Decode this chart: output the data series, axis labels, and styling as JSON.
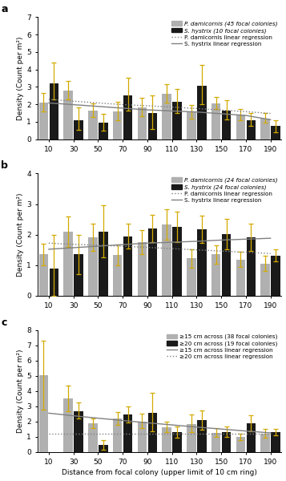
{
  "x_positions": [
    10,
    30,
    50,
    70,
    90,
    110,
    130,
    150,
    170,
    190
  ],
  "panel_a": {
    "gray_bars": [
      2.1,
      2.8,
      1.65,
      1.6,
      1.8,
      2.6,
      1.55,
      2.05,
      1.4,
      1.2
    ],
    "black_bars": [
      3.2,
      1.1,
      0.95,
      2.5,
      1.5,
      2.15,
      3.05,
      1.65,
      1.1,
      0.75
    ],
    "gray_err_hi": [
      0.55,
      0.55,
      0.4,
      0.55,
      0.55,
      0.55,
      0.4,
      0.35,
      0.35,
      0.3
    ],
    "black_err_hi": [
      1.2,
      0.7,
      0.5,
      1.0,
      1.0,
      0.75,
      1.2,
      0.6,
      0.4,
      0.35
    ],
    "gray_err_lo": [
      0.5,
      0.5,
      0.4,
      0.5,
      0.5,
      0.5,
      0.35,
      0.3,
      0.3,
      0.25
    ],
    "black_err_lo": [
      0.9,
      0.55,
      0.45,
      0.85,
      0.9,
      0.65,
      1.05,
      0.5,
      0.35,
      0.35
    ],
    "reg_gray": [
      2.28,
      2.18,
      2.08,
      1.98,
      1.92,
      1.84,
      1.76,
      1.67,
      1.58,
      1.48
    ],
    "reg_black": [
      2.08,
      1.98,
      1.88,
      1.78,
      1.68,
      1.62,
      1.56,
      1.46,
      1.36,
      1.12
    ],
    "ylim": [
      0,
      7
    ],
    "yticks": [
      0,
      1,
      2,
      3,
      4,
      5,
      6,
      7
    ],
    "reg_gray_style": "dotted",
    "reg_black_style": "solid",
    "legend": [
      "P. damicornis (45 focal colonies)",
      "S. hystrix (10 focal colonies)",
      "P. damicornis linear regression",
      "S. hystrix linear regression"
    ],
    "legend_italic": [
      true,
      true,
      false,
      false
    ],
    "label": "a"
  },
  "panel_b": {
    "gray_bars": [
      1.35,
      2.1,
      1.92,
      1.33,
      1.75,
      2.32,
      1.22,
      1.35,
      1.18,
      1.05
    ],
    "black_bars": [
      0.88,
      1.35,
      2.1,
      1.95,
      2.2,
      2.25,
      2.18,
      2.02,
      1.92,
      1.32
    ],
    "gray_err_hi": [
      0.35,
      0.5,
      0.45,
      0.35,
      0.4,
      0.5,
      0.3,
      0.3,
      0.25,
      0.25
    ],
    "black_err_hi": [
      1.1,
      0.65,
      0.85,
      0.4,
      0.45,
      0.5,
      0.45,
      0.5,
      0.45,
      0.2
    ],
    "gray_err_lo": [
      0.35,
      0.5,
      0.45,
      0.35,
      0.4,
      0.5,
      0.3,
      0.3,
      0.25,
      0.25
    ],
    "black_err_lo": [
      0.88,
      0.65,
      0.85,
      0.4,
      0.45,
      0.5,
      0.45,
      0.5,
      0.45,
      0.2
    ],
    "reg_gray": [
      1.72,
      1.68,
      1.65,
      1.62,
      1.58,
      1.54,
      1.5,
      1.46,
      1.42,
      1.38
    ],
    "reg_black": [
      1.52,
      1.57,
      1.62,
      1.67,
      1.72,
      1.75,
      1.78,
      1.82,
      1.85,
      1.88
    ],
    "ylim": [
      0,
      4
    ],
    "yticks": [
      0,
      1,
      2,
      3,
      4
    ],
    "reg_gray_style": "dotted",
    "reg_black_style": "solid",
    "legend": [
      "P. damicornis (24 focal colonies)",
      "S. hystrix (24 focal colonies)",
      "P. damicornis linear regression",
      "S. hystrix linear regression"
    ],
    "legend_italic": [
      true,
      true,
      false,
      false
    ],
    "label": "b"
  },
  "panel_c": {
    "gray_bars": [
      5.05,
      3.5,
      1.88,
      2.2,
      2.0,
      1.65,
      1.85,
      1.25,
      0.98,
      1.22
    ],
    "black_bars": [
      0.0,
      2.68,
      0.45,
      2.45,
      2.58,
      1.3,
      2.08,
      1.32,
      1.88,
      1.3
    ],
    "gray_err_hi": [
      2.25,
      0.85,
      0.3,
      0.4,
      0.5,
      0.35,
      0.6,
      0.3,
      0.25,
      0.3
    ],
    "black_err_hi": [
      0.0,
      0.55,
      0.35,
      0.55,
      1.3,
      0.38,
      0.65,
      0.38,
      0.55,
      0.22
    ],
    "gray_err_lo": [
      2.25,
      0.85,
      0.3,
      0.4,
      0.45,
      0.32,
      0.55,
      0.28,
      0.22,
      0.28
    ],
    "black_err_lo": [
      0.0,
      0.5,
      0.3,
      0.5,
      1.2,
      0.35,
      0.6,
      0.35,
      0.5,
      0.2
    ],
    "reg_gray": [
      2.55,
      2.38,
      2.22,
      2.07,
      1.92,
      1.78,
      1.64,
      1.51,
      1.38,
      1.26
    ],
    "reg_black": [
      1.18,
      1.18,
      1.18,
      1.18,
      1.18,
      1.18,
      1.18,
      1.18,
      1.18,
      1.18
    ],
    "ylim": [
      0,
      8
    ],
    "yticks": [
      0,
      1,
      2,
      3,
      4,
      5,
      6,
      7,
      8
    ],
    "reg_gray_style": "solid",
    "reg_black_style": "dotted",
    "legend": [
      "≥15 cm across (38 focal colonies)",
      "≥20 cm across (19 focal colonies)",
      "≥15 cm across linear regression",
      "≥20 cm across linear regression"
    ],
    "legend_italic": [
      false,
      false,
      false,
      false
    ],
    "label": "c"
  },
  "gray_color": "#b0b0b0",
  "black_color": "#1a1a1a",
  "err_color": "#d4aa00",
  "reg_color": "#808080",
  "reg_linewidth": 1.0,
  "ylabel": "Density (Count per m²)",
  "xlabel": "Distance from focal colony (upper limit of 10 cm ring)"
}
